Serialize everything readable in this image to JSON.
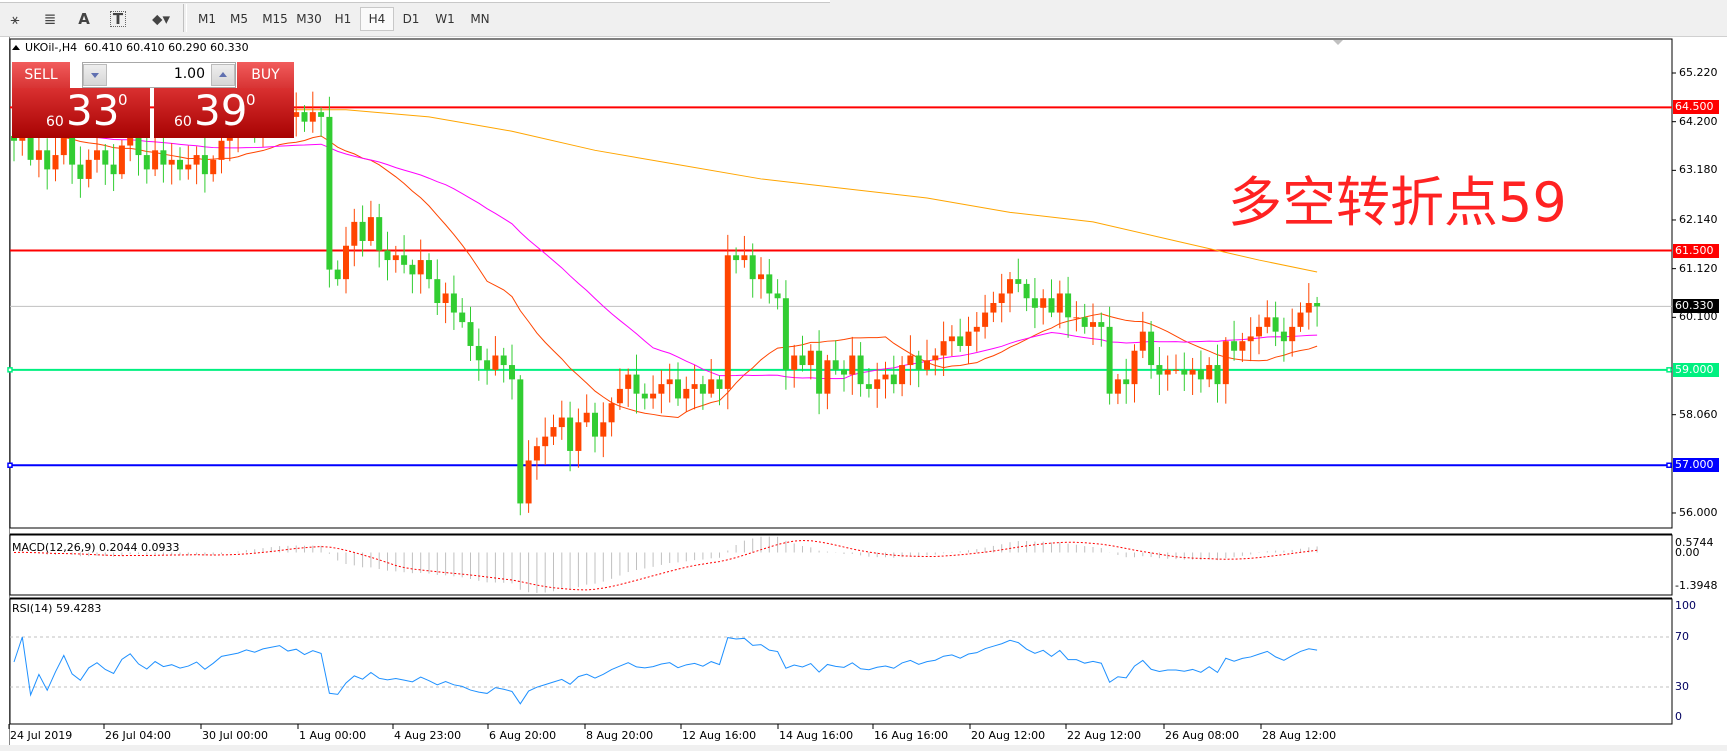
{
  "toolbar": {
    "tools": [
      {
        "name": "indicators-icon",
        "glyph": "⚹"
      },
      {
        "name": "fibonacci-icon",
        "glyph": "≣"
      },
      {
        "name": "text-icon",
        "glyph": "A"
      },
      {
        "name": "text-label-icon",
        "glyph": "T"
      },
      {
        "name": "arrows-icon",
        "glyph": "⬥▾"
      }
    ],
    "timeframes": [
      "M1",
      "M5",
      "M15",
      "M30",
      "H1",
      "H4",
      "D1",
      "W1",
      "MN"
    ],
    "selected_timeframe": "H4"
  },
  "header": {
    "symbol": "UKOil-,H4",
    "ohlc": "60.410 60.410 60.290 60.330"
  },
  "trade_panel": {
    "sell_label": "SELL",
    "buy_label": "BUY",
    "lot": "1.00",
    "sell_price": {
      "prefix": "60",
      "big": "33",
      "sup": "0"
    },
    "buy_price": {
      "prefix": "60",
      "big": "39",
      "sup": "0"
    }
  },
  "annotation": "多空转折点59",
  "colors": {
    "bull": "#ff4500",
    "bear": "#32cd32",
    "ma_fast": "#ff4500",
    "ma_mid": "#ff00ff",
    "ma_slow": "#ffa500",
    "rsi": "#1e90ff",
    "macd_signal": "#ff0000",
    "macd_hist": "#c0c0c0"
  },
  "chart_data": {
    "type": "candlestick",
    "symbol": "UKOil-",
    "timeframe": "H4",
    "ylim": [
      56.0,
      65.22
    ],
    "price_axis_ticks": [
      "65.220",
      "64.200",
      "63.180",
      "62.140",
      "61.120",
      "60.100",
      "58.060",
      "56.000"
    ],
    "time_axis_ticks": [
      "24 Jul 2019",
      "26 Jul 04:00",
      "30 Jul 00:00",
      "1 Aug 00:00",
      "4 Aug 23:00",
      "6 Aug 20:00",
      "8 Aug 20:00",
      "12 Aug 16:00",
      "14 Aug 16:00",
      "16 Aug 16:00",
      "20 Aug 12:00",
      "22 Aug 12:00",
      "26 Aug 08:00",
      "28 Aug 12:00"
    ],
    "horizontal_lines": [
      {
        "price": 64.5,
        "label": "64.500",
        "color": "#ff0000"
      },
      {
        "price": 61.5,
        "label": "61.500",
        "color": "#ff0000"
      },
      {
        "price": 60.33,
        "label": "60.330",
        "color": "#000000"
      },
      {
        "price": 59.0,
        "label": "59.000",
        "color": "#00f080"
      },
      {
        "price": 57.0,
        "label": "57.000",
        "color": "#0000ff"
      }
    ],
    "closes": [
      63.8,
      64.0,
      63.4,
      63.6,
      63.2,
      63.5,
      63.9,
      63.3,
      63.0,
      63.4,
      63.6,
      63.3,
      63.1,
      63.7,
      64.0,
      63.5,
      63.2,
      63.6,
      63.3,
      63.4,
      63.2,
      63.3,
      63.5,
      63.1,
      63.4,
      63.8,
      63.9,
      64.0,
      64.2,
      64.1,
      64.3,
      64.4,
      64.5,
      64.3,
      64.4,
      64.2,
      64.4,
      64.3,
      61.1,
      60.9,
      61.6,
      62.1,
      61.7,
      62.2,
      61.5,
      61.3,
      61.4,
      61.2,
      61.0,
      61.3,
      60.9,
      60.4,
      60.6,
      60.2,
      60.0,
      59.5,
      59.2,
      59.0,
      59.3,
      59.1,
      58.8,
      56.2,
      57.1,
      57.4,
      57.6,
      57.8,
      58.0,
      57.3,
      57.9,
      58.1,
      57.6,
      57.9,
      58.3,
      58.6,
      58.9,
      58.5,
      58.4,
      58.5,
      58.7,
      58.8,
      58.4,
      58.6,
      58.7,
      58.5,
      58.8,
      58.6,
      61.4,
      61.3,
      61.4,
      60.9,
      61.0,
      60.6,
      60.5,
      59.0,
      59.3,
      59.1,
      59.4,
      58.5,
      59.2,
      59.0,
      58.9,
      59.3,
      58.7,
      58.6,
      58.8,
      58.9,
      58.7,
      59.1,
      59.3,
      59.0,
      59.2,
      59.3,
      59.6,
      59.7,
      59.5,
      59.8,
      59.9,
      60.2,
      60.4,
      60.6,
      60.9,
      60.8,
      60.5,
      60.3,
      60.5,
      60.2,
      60.6,
      60.1,
      60.1,
      59.9,
      60.0,
      59.9,
      58.5,
      58.8,
      58.7,
      59.4,
      59.8,
      59.1,
      58.9,
      59.0,
      59.0,
      58.9,
      59.0,
      58.8,
      59.1,
      58.7,
      59.6,
      59.4,
      59.6,
      59.7,
      59.9,
      60.1,
      59.8,
      59.6,
      59.9,
      60.2,
      60.4,
      60.33
    ],
    "ma_slow_points": [
      [
        30,
        64.45
      ],
      [
        40,
        64.45
      ],
      [
        50,
        64.3
      ],
      [
        60,
        64.0
      ],
      [
        70,
        63.6
      ],
      [
        80,
        63.3
      ],
      [
        90,
        63.0
      ],
      [
        100,
        62.8
      ],
      [
        110,
        62.6
      ],
      [
        120,
        62.3
      ],
      [
        130,
        62.1
      ],
      [
        140,
        61.7
      ],
      [
        150,
        61.3
      ],
      [
        157,
        61.05
      ]
    ],
    "macd": {
      "label": "MACD(12,26,9) 0.2044 0.0933",
      "ticks": [
        "0.5744",
        "0.00",
        "-1.3948"
      ],
      "ylim": [
        -1.3948,
        0.5744
      ]
    },
    "rsi": {
      "label": "RSI(14) 59.4283",
      "ticks": [
        "100",
        "70",
        "30",
        "0"
      ],
      "levels": [
        70,
        30
      ]
    }
  }
}
